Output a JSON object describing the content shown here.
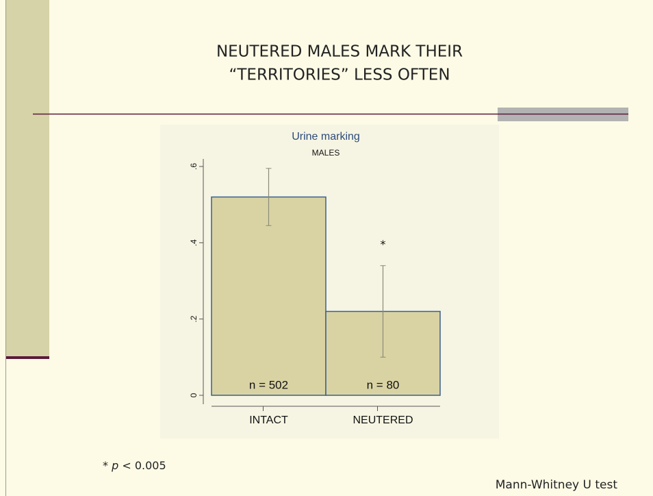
{
  "slide": {
    "title_lines": [
      "NEUTERED MALES MARK THEIR",
      "“TERRITORIES” LESS OFTEN"
    ],
    "footnote": {
      "star": "*",
      "p": "p",
      "rest": "< 0.005"
    },
    "test": "Mann-Whitney U test"
  },
  "chart_data": {
    "type": "bar",
    "title": "Urine marking",
    "subtitle": "MALES",
    "categories": [
      "INTACT",
      "NEUTERED"
    ],
    "values": [
      0.52,
      0.22
    ],
    "errors": [
      0.075,
      0.12
    ],
    "color": "#d9d3a4",
    "edge_color": "#3a5f8a",
    "annotations": [
      "n = 502",
      "n = 80"
    ],
    "significance": [
      null,
      "*"
    ],
    "ylim": [
      0,
      0.6
    ],
    "yticks": [
      0,
      {
        "value": 0.2,
        "label": ".2"
      },
      {
        "value": 0.4,
        "label": ".4"
      },
      {
        "value": 0.6,
        "label": ".6"
      }
    ],
    "grid": false
  }
}
